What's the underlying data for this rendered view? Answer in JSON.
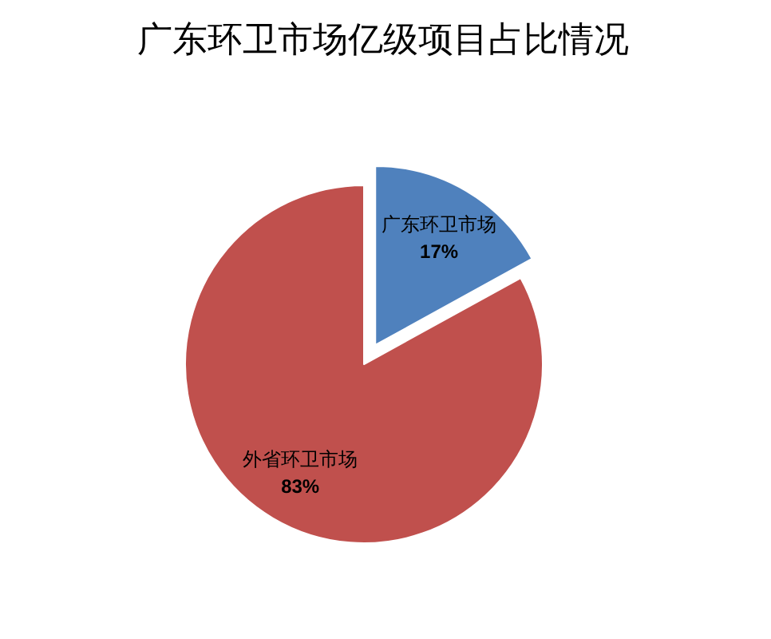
{
  "chart_data": {
    "type": "pie",
    "title": "广东环卫市场亿级项目占比情况",
    "categories": [
      "广东环卫市场",
      "外省环卫市场"
    ],
    "values": [
      17,
      83
    ],
    "value_labels": [
      "17%",
      "83%"
    ],
    "colors": [
      "#4f81bd",
      "#c0504d"
    ]
  }
}
